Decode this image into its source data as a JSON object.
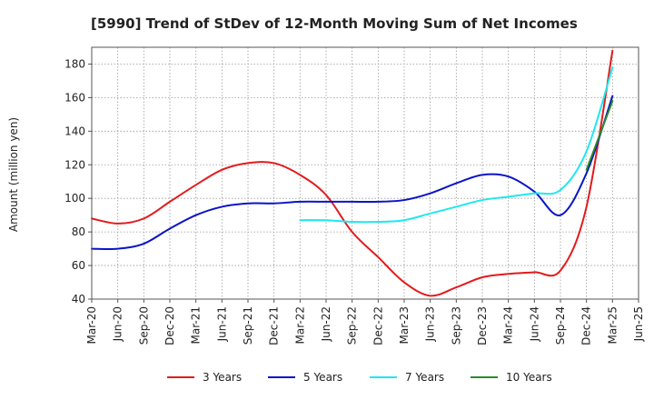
{
  "chart_data": {
    "type": "line",
    "title": "[5990]  Trend of StDev of 12-Month Moving Sum of Net Incomes",
    "xlabel": "",
    "ylabel": "Amount (million yen)",
    "ylim": [
      40,
      190
    ],
    "yticks": [
      40,
      60,
      80,
      100,
      120,
      140,
      160,
      180
    ],
    "x_tick_labels": [
      "Mar-20",
      "Jun-20",
      "Sep-20",
      "Dec-20",
      "Mar-21",
      "Jun-21",
      "Sep-21",
      "Dec-21",
      "Mar-22",
      "Jun-22",
      "Sep-22",
      "Dec-22",
      "Mar-23",
      "Jun-23",
      "Sep-23",
      "Dec-23",
      "Mar-24",
      "Jun-24",
      "Sep-24",
      "Dec-24",
      "Mar-25",
      "Jun-25"
    ],
    "grid": true,
    "legend_position": "bottom",
    "series": [
      {
        "name": "3 Years",
        "color": "#e31a1c",
        "points": [
          [
            "Mar-20",
            88
          ],
          [
            "Jun-20",
            85
          ],
          [
            "Sep-20",
            88
          ],
          [
            "Dec-20",
            98
          ],
          [
            "Mar-21",
            108
          ],
          [
            "Jun-21",
            117
          ],
          [
            "Sep-21",
            121
          ],
          [
            "Dec-21",
            121
          ],
          [
            "Mar-22",
            114
          ],
          [
            "Jun-22",
            102
          ],
          [
            "Sep-22",
            80
          ],
          [
            "Dec-22",
            65
          ],
          [
            "Mar-23",
            50
          ],
          [
            "Jun-23",
            42
          ],
          [
            "Sep-23",
            47
          ],
          [
            "Dec-23",
            53
          ],
          [
            "Mar-24",
            55
          ],
          [
            "Jun-24",
            56
          ],
          [
            "Sep-24",
            57
          ],
          [
            "Dec-24",
            95
          ],
          [
            "Mar-25",
            188
          ]
        ]
      },
      {
        "name": "5 Years",
        "color": "#0a14c8",
        "points": [
          [
            "Mar-20",
            70
          ],
          [
            "Jun-20",
            70
          ],
          [
            "Sep-20",
            73
          ],
          [
            "Dec-20",
            82
          ],
          [
            "Mar-21",
            90
          ],
          [
            "Jun-21",
            95
          ],
          [
            "Sep-21",
            97
          ],
          [
            "Dec-21",
            97
          ],
          [
            "Mar-22",
            98
          ],
          [
            "Jun-22",
            98
          ],
          [
            "Sep-22",
            98
          ],
          [
            "Dec-22",
            98
          ],
          [
            "Mar-23",
            99
          ],
          [
            "Jun-23",
            103
          ],
          [
            "Sep-23",
            109
          ],
          [
            "Dec-23",
            114
          ],
          [
            "Mar-24",
            113
          ],
          [
            "Jun-24",
            104
          ],
          [
            "Sep-24",
            90
          ],
          [
            "Dec-24",
            115
          ],
          [
            "Mar-25",
            161
          ]
        ]
      },
      {
        "name": "7 Years",
        "color": "#1ee8f0",
        "points": [
          [
            "Mar-22",
            87
          ],
          [
            "Jun-22",
            87
          ],
          [
            "Sep-22",
            86
          ],
          [
            "Dec-22",
            86
          ],
          [
            "Mar-23",
            87
          ],
          [
            "Jun-23",
            91
          ],
          [
            "Sep-23",
            95
          ],
          [
            "Dec-23",
            99
          ],
          [
            "Mar-24",
            101
          ],
          [
            "Jun-24",
            103
          ],
          [
            "Sep-24",
            105
          ],
          [
            "Dec-24",
            128
          ],
          [
            "Mar-25",
            178
          ]
        ]
      },
      {
        "name": "10 Years",
        "color": "#2a8a2a",
        "points": [
          [
            "Dec-24",
            117
          ],
          [
            "Mar-25",
            158
          ]
        ]
      }
    ]
  }
}
